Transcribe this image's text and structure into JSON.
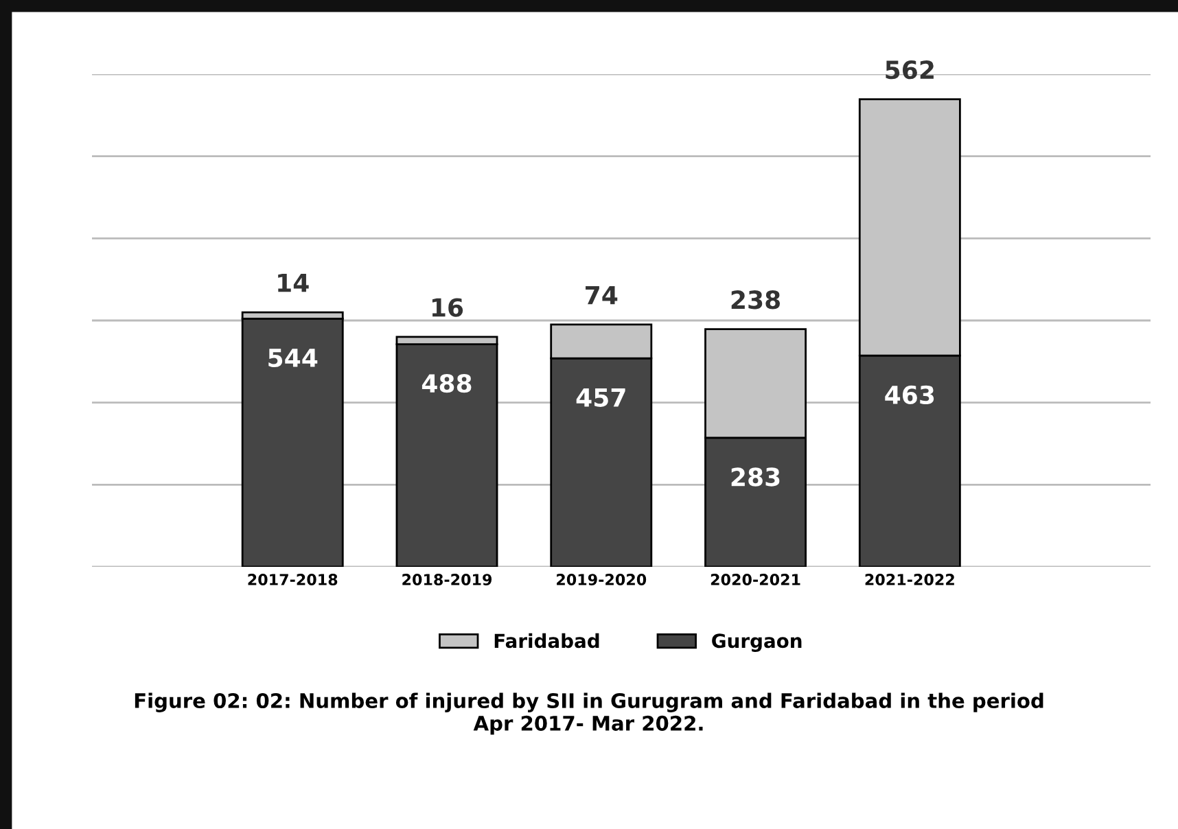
{
  "chart_data": {
    "type": "bar",
    "stacked": true,
    "categories": [
      "2017-2018",
      "2018-2019",
      "2019-2020",
      "2020-2021",
      "2021-2022"
    ],
    "series": [
      {
        "name": "Gurgaon",
        "color": "#454545",
        "values": [
          544,
          488,
          457,
          283,
          463
        ]
      },
      {
        "name": "Faridabad",
        "color": "#c4c4c4",
        "values": [
          14,
          16,
          74,
          238,
          562
        ]
      }
    ],
    "ylim": [
      0,
      1080
    ],
    "yticks": [
      {
        "value": 0,
        "label": null
      },
      {
        "value": 180,
        "label": null
      },
      {
        "value": 360,
        "label": null
      },
      {
        "value": 540,
        "label": null
      },
      {
        "value": 720,
        "label": null
      },
      {
        "value": 900,
        "label": null
      },
      {
        "value": 1080,
        "label": null
      }
    ],
    "tick_labels": "x",
    "grid": "y",
    "legend": "bottom",
    "data_labels": true,
    "annotations": [
      "Figure 02: 02: Number of injured by SII in Gurugram and Faridabad in the period\nApr 2017- Mar 2022."
    ]
  }
}
